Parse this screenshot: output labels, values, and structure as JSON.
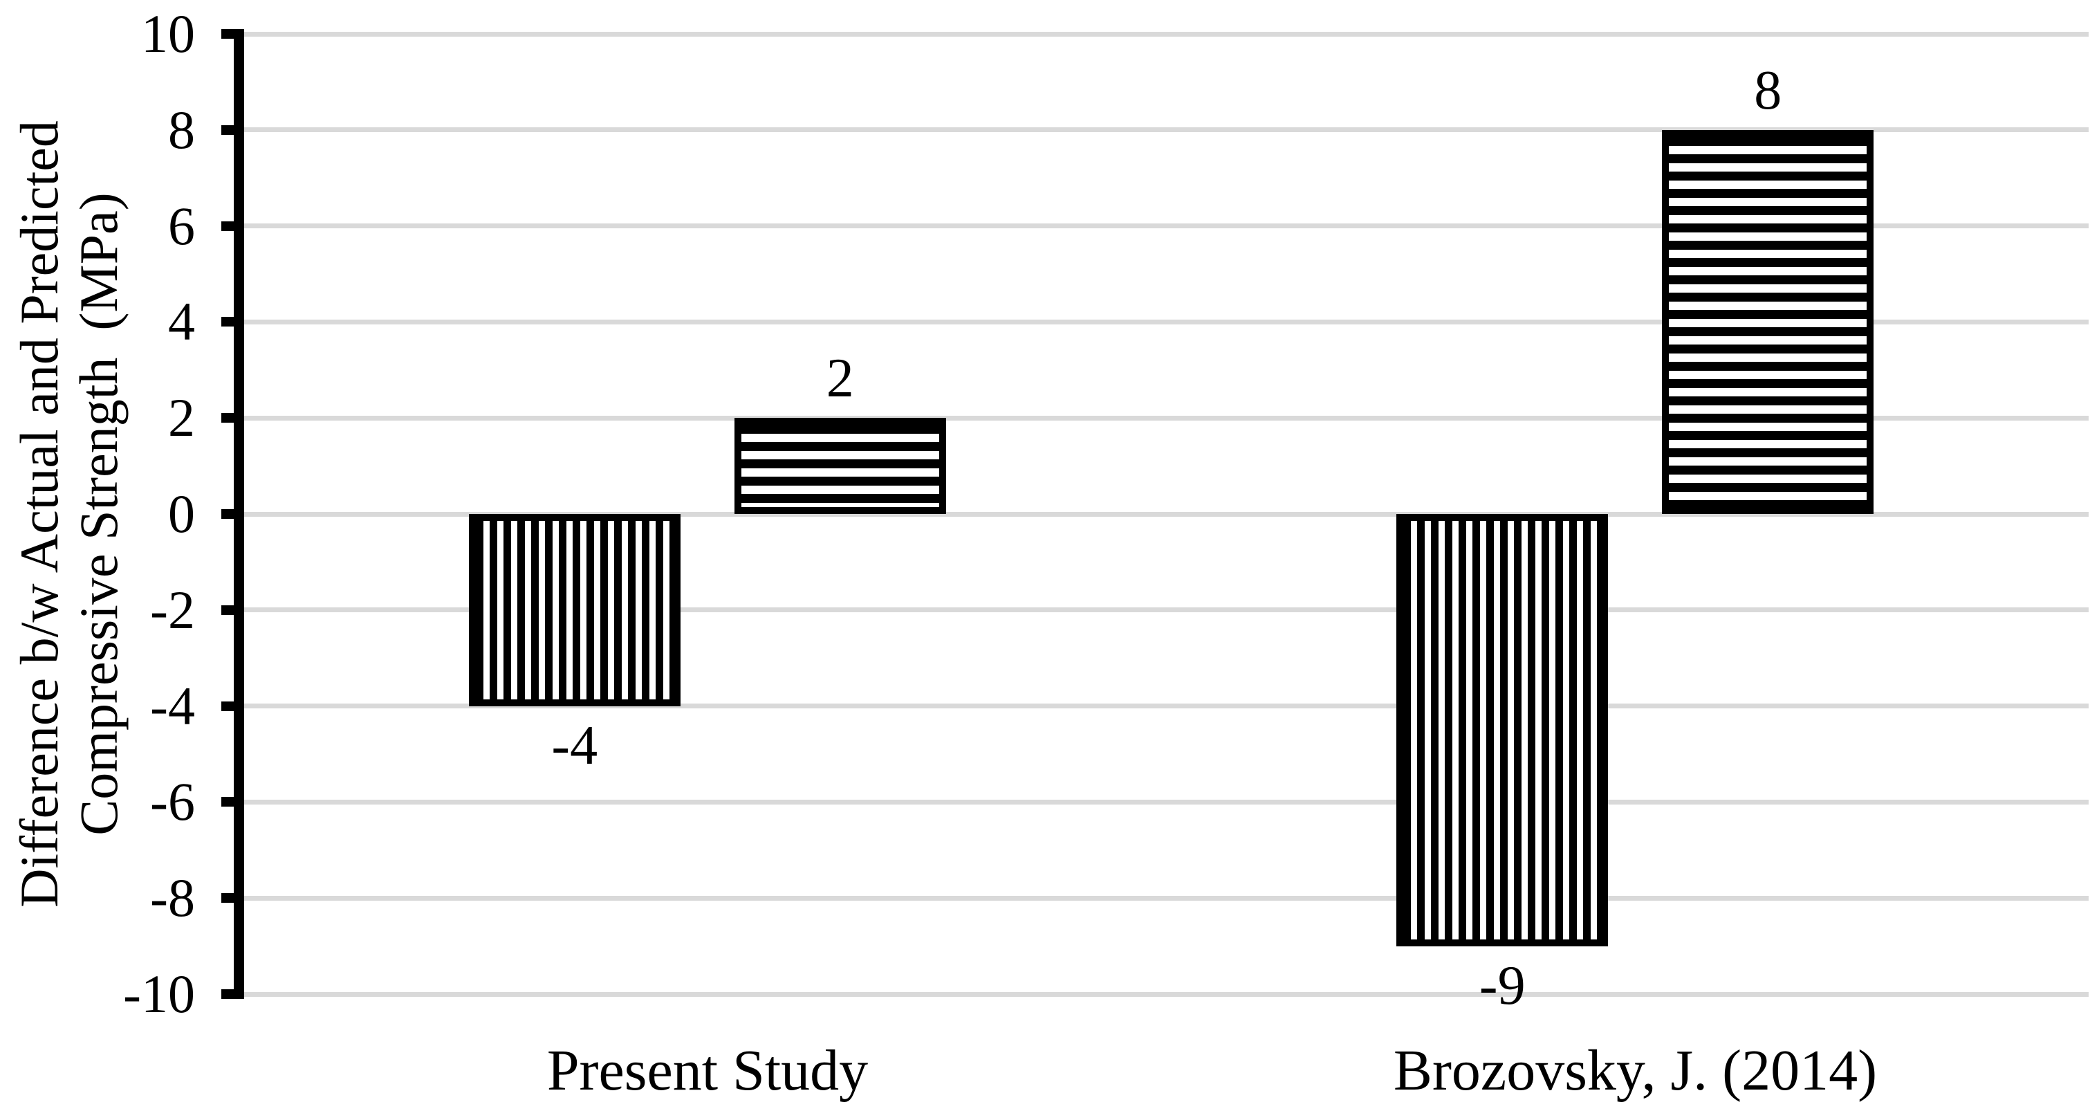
{
  "figure": {
    "background": "#ffffff",
    "text_color": "#000000"
  },
  "y_axis": {
    "title_lines": [
      "Difference b/w Actual and Predicted",
      "Compressive Strength  (MPa)"
    ],
    "tick_labels": [
      "10",
      "8",
      "6",
      "4",
      "2",
      "0",
      "-2",
      "-4",
      "-6",
      "-8",
      "-10"
    ]
  },
  "chart_data": {
    "type": "bar",
    "title": "",
    "xlabel": "",
    "ylabel_lines": [
      "Difference b/w Actual and Predicted",
      "Compressive Strength  (MPa)"
    ],
    "categories": [
      "Present Study",
      "Brozovsky, J. (2014)"
    ],
    "series": [
      {
        "name": "negative-difference",
        "hatch": "vertical-stripes",
        "values": [
          -4,
          -9
        ],
        "data_labels": [
          "-4",
          "-9"
        ]
      },
      {
        "name": "positive-difference",
        "hatch": "horizontal-stripes",
        "values": [
          2,
          8
        ],
        "data_labels": [
          "2",
          "8"
        ]
      }
    ],
    "ylim": [
      -10,
      10
    ],
    "ytick_step": 2,
    "yticks": [
      10,
      8,
      6,
      4,
      2,
      0,
      -2,
      -4,
      -6,
      -8,
      -10
    ],
    "ytick_labels": [
      "10",
      "8",
      "6",
      "4",
      "2",
      "0",
      "-2",
      "-4",
      "-6",
      "-8",
      "-10"
    ],
    "grid": "horizontal",
    "legend": "none",
    "colors": {
      "bars": "#000000",
      "gridlines": "#d9d9d9",
      "axis": "#000000",
      "text": "#000000",
      "background": "#ffffff"
    }
  }
}
